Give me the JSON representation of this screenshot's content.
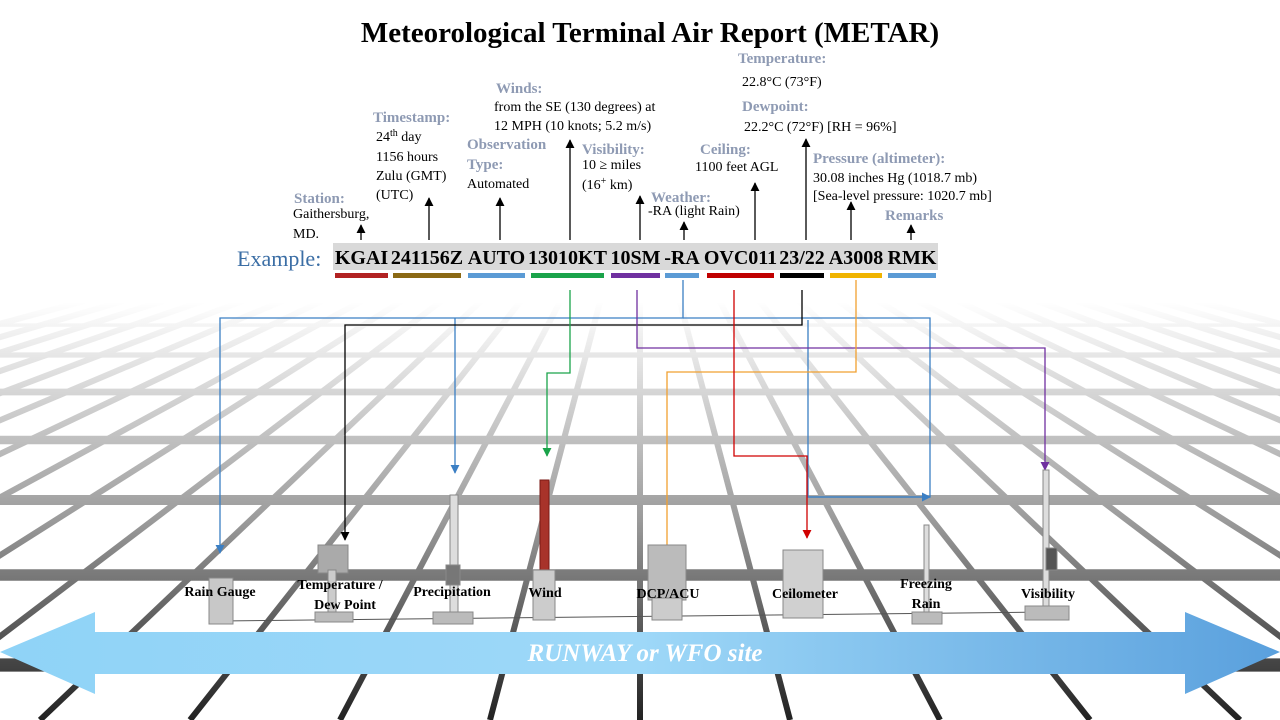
{
  "title": "Meteorological Terminal Air Report (METAR)",
  "example": {
    "label": "Example:",
    "codes": [
      "KGAI",
      "241156Z",
      "AUTO",
      "13010KT",
      "10SM",
      "-RA",
      "OVC011",
      "23/22",
      "A3008",
      "RMK"
    ]
  },
  "annotations": {
    "station": {
      "heading": "Station:",
      "lines": [
        "Gaithersburg,",
        "MD."
      ]
    },
    "timestamp": {
      "heading": "Timestamp:",
      "day": {
        "number": "24",
        "suffix": "th",
        "rest": " day"
      },
      "lines": [
        "1156 hours",
        "Zulu  (GMT)",
        "(UTC)"
      ]
    },
    "observation_type": {
      "heading": [
        "Observation",
        "Type:"
      ],
      "lines": [
        "Automated"
      ]
    },
    "winds": {
      "heading": "Winds:",
      "lines": [
        "from the SE (130 degrees) at",
        "12 MPH (10 knots; 5.2 m/s)"
      ]
    },
    "visibility": {
      "heading": "Visibility:",
      "lines": [
        "10 ≥ miles"
      ],
      "metric": {
        "open": "(16",
        "sup": "+",
        "rest": " km)"
      }
    },
    "weather": {
      "heading": "Weather:",
      "lines": [
        "-RA (light  Rain)"
      ]
    },
    "ceiling": {
      "heading": "Ceiling:",
      "lines": [
        "1100 feet AGL"
      ]
    },
    "temperature": {
      "heading": "Temperature:",
      "lines": [
        "22.8°C (73°F)"
      ]
    },
    "dewpoint": {
      "heading": "Dewpoint:",
      "lines": [
        "22.2°C (72°F) [RH = 96%]"
      ]
    },
    "pressure": {
      "heading": "Pressure (altimeter):",
      "lines": [
        "30.08 inches Hg (1018.7 mb)",
        "[Sea-level pressure: 1020.7 mb]"
      ]
    },
    "remarks": {
      "heading": "Remarks"
    }
  },
  "instruments": [
    {
      "lines": [
        "Rain Gauge"
      ]
    },
    {
      "lines": [
        "Temperature /",
        "Dew Point"
      ]
    },
    {
      "lines": [
        "Precipitation"
      ]
    },
    {
      "lines": [
        "Wind"
      ]
    },
    {
      "lines": [
        "DCP/ACU"
      ]
    },
    {
      "lines": [
        "Ceilometer"
      ]
    },
    {
      "lines": [
        "Freezing",
        "Rain"
      ]
    },
    {
      "lines": [
        "Visibility"
      ]
    }
  ],
  "banner": "RUNWAY  or WFO site"
}
